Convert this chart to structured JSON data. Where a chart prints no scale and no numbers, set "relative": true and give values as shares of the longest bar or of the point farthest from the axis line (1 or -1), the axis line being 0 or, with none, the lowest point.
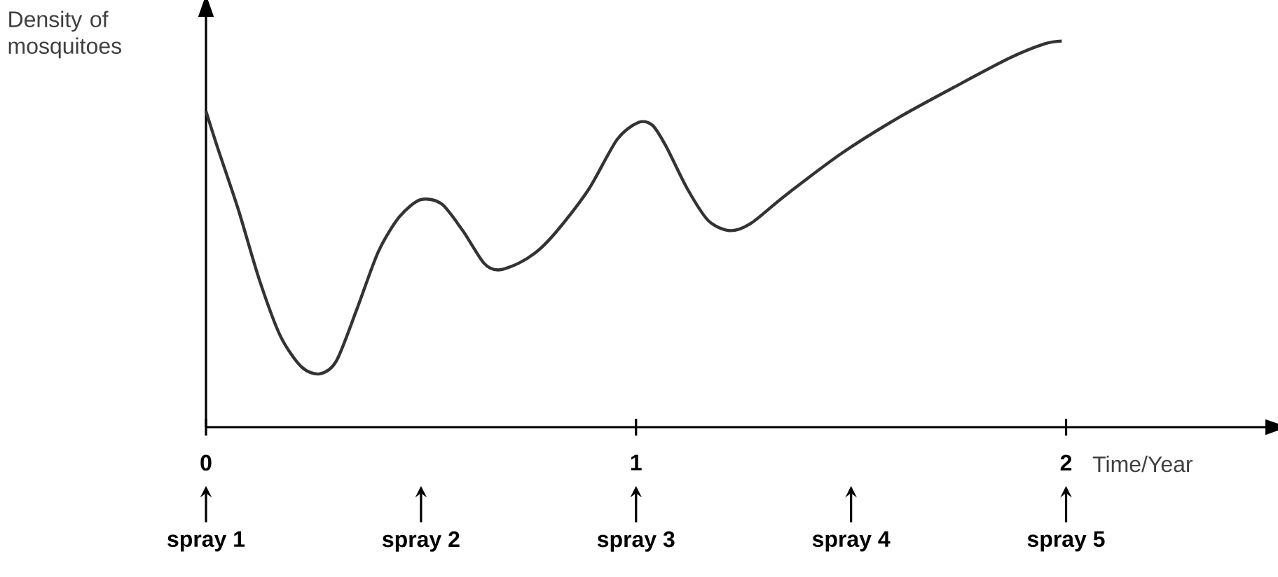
{
  "chart_data": {
    "type": "line",
    "relative": true,
    "xlabel": "Time/Year",
    "ylabel": "Density of mosquitoes",
    "xlim": [
      0,
      2.47
    ],
    "xticks": [
      0,
      1,
      2
    ],
    "grid": false,
    "legend": false,
    "marker": "none",
    "line_style": "solid",
    "series": [
      {
        "color": "#333333",
        "x": [
          0,
          0.026,
          0.075,
          0.124,
          0.173,
          0.222,
          0.264,
          0.303,
          0.352,
          0.401,
          0.45,
          0.499,
          0.548,
          0.597,
          0.646,
          0.679,
          0.728,
          0.777,
          0.825,
          0.891,
          0.956,
          1.005,
          1.038,
          1.07,
          1.119,
          1.168,
          1.217,
          1.266,
          1.347,
          1.478,
          1.608,
          1.739,
          1.869,
          1.951,
          1.99
        ],
        "values": [
          0.818,
          0.727,
          0.564,
          0.382,
          0.236,
          0.156,
          0.138,
          0.171,
          0.309,
          0.455,
          0.545,
          0.589,
          0.578,
          0.509,
          0.425,
          0.407,
          0.425,
          0.462,
          0.52,
          0.618,
          0.745,
          0.789,
          0.782,
          0.727,
          0.618,
          0.535,
          0.509,
          0.527,
          0.6,
          0.709,
          0.8,
          0.88,
          0.956,
          0.993,
          1.0
        ]
      }
    ],
    "annotations": [
      "spray 1",
      "spray 2",
      "spray 3",
      "spray 4",
      "spray 5"
    ]
  }
}
